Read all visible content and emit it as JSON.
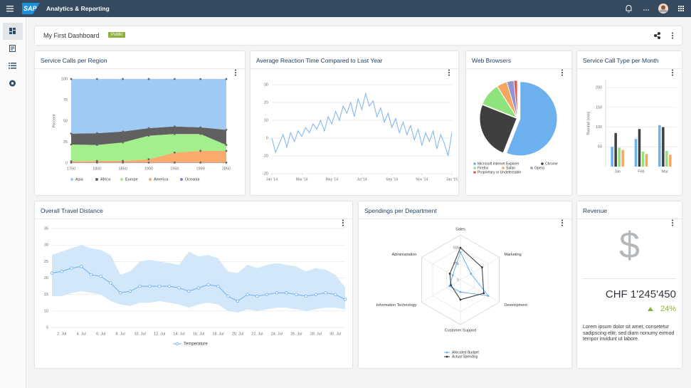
{
  "header": {
    "logo": "SAP",
    "app_title": "Analytics & Reporting"
  },
  "dashboard": {
    "title": "My First Dashboard",
    "badge": "Public"
  },
  "revenue": {
    "title": "Revenue",
    "icon": "$",
    "value": "CHF 1'245'450",
    "change": "24%",
    "text": "Lorem ipsum dolor sit amet, consetetur sadipscing elitr, sed diam nonumy eirmod tempor invidunt ut labore."
  },
  "chart_data": [
    {
      "type": "area",
      "stacked": true,
      "title": "Service Calls per Region",
      "y_label": "Percent",
      "categories": [
        "1750",
        "1800",
        "1850",
        "1900",
        "1950",
        "1999",
        "2050"
      ],
      "ylim": [
        0,
        100
      ],
      "yticks": [
        0,
        25,
        50,
        75,
        100
      ],
      "grid": true,
      "series": [
        {
          "name": "Asia",
          "color": "#9fcaf3",
          "values": [
            65,
            64.5,
            62.5,
            58.5,
            56.5,
            57.5,
            60.5
          ]
        },
        {
          "name": "Africa",
          "color": "#606060",
          "values": [
            13,
            14,
            13,
            9,
            9,
            8,
            18
          ]
        },
        {
          "name": "Europe",
          "color": "#a2ef8c",
          "values": [
            20,
            19,
            22,
            28,
            22,
            20,
            7
          ]
        },
        {
          "name": "America",
          "color": "#f8ab6d",
          "values": [
            1.5,
            2,
            2,
            4,
            12,
            14,
            14
          ]
        },
        {
          "name": "Oceania",
          "color": "#7d86d9",
          "values": [
            0.5,
            0.5,
            0.5,
            0.5,
            0.5,
            0.5,
            0.5
          ]
        }
      ]
    },
    {
      "type": "line",
      "title": "Average Reaction Time Compared to Last Year",
      "color": "#87b9ec",
      "x": [
        0,
        1,
        2,
        3,
        4,
        5,
        6,
        7,
        8,
        9,
        10,
        11,
        12,
        13,
        14,
        15,
        16,
        17,
        18,
        19,
        20,
        21,
        22,
        23,
        24,
        25,
        26,
        27,
        28,
        29,
        30,
        31,
        32,
        33,
        34,
        35,
        36,
        37,
        38,
        39,
        40,
        41,
        42,
        43,
        44,
        45,
        46,
        47,
        48
      ],
      "values": [
        0,
        -8,
        -3,
        2,
        -5,
        3,
        -2,
        4,
        1,
        6,
        3,
        8,
        5,
        10,
        4,
        12,
        8,
        15,
        10,
        18,
        14,
        20,
        12,
        22,
        16,
        25,
        18,
        21,
        12,
        17,
        9,
        14,
        6,
        11,
        3,
        9,
        2,
        7,
        -1,
        5,
        -4,
        3,
        -2,
        4,
        -6,
        2,
        -3,
        -10,
        3
      ],
      "xlim": [
        0,
        48
      ],
      "xticks": [
        {
          "value": 0,
          "label": "Jan '14"
        },
        {
          "value": 8,
          "label": "Mar '14"
        },
        {
          "value": 16,
          "label": "May '14"
        },
        {
          "value": 24,
          "label": "Jul '14"
        },
        {
          "value": 32,
          "label": "Sep '14"
        },
        {
          "value": 40,
          "label": "Nov '14"
        },
        {
          "value": 48,
          "label": "Jan '15"
        }
      ],
      "ylim": [
        -20,
        30
      ],
      "yticks": [
        -20,
        -10,
        0,
        10,
        20,
        30
      ],
      "grid": true
    },
    {
      "type": "pie",
      "title": "Web Browsers",
      "categories": [
        "Microsoft Internet Explorer",
        "Chrome",
        "Firefox",
        "Safari",
        "Opera",
        "Proprietary or Undetectable"
      ],
      "values": [
        56,
        25,
        10,
        4.5,
        3,
        1.5
      ],
      "colors": [
        "#6cb0ed",
        "#3f3f3f",
        "#8fe37c",
        "#f5a660",
        "#8f94d6",
        "#e8554f"
      ]
    },
    {
      "type": "bar",
      "title": "Service Call Type per Month",
      "y_label": "Rainfall (mm)",
      "categories": [
        "Jan",
        "Feb",
        "Mar"
      ],
      "ylim": [
        0,
        220
      ],
      "yticks": [
        50,
        100,
        150,
        200
      ],
      "grid": true,
      "series": [
        {
          "color": "#6cb0ed",
          "values": [
            50,
            70,
            105
          ]
        },
        {
          "color": "#3f3f3f",
          "values": [
            85,
            95,
            100
          ]
        },
        {
          "color": "#8fe37c",
          "values": [
            48,
            38,
            40
          ]
        },
        {
          "color": "#f5a660",
          "values": [
            42,
            32,
            30
          ]
        }
      ]
    },
    {
      "type": "line",
      "title": "Overall Travel Distance",
      "categories": [
        null,
        "2. Jul",
        null,
        "4. Jul",
        null,
        "6. Jul",
        null,
        "8. Jul",
        null,
        "10. Jul",
        null,
        "12. Jul",
        null,
        "14. Jul",
        null,
        "16. Jul",
        null,
        "18. Jul",
        null,
        "20. Jul",
        null,
        "22. Jul",
        null,
        "24. Jul",
        null,
        "26. Jul",
        null,
        "28. Jul",
        null,
        "30. Jul",
        null
      ],
      "ylim": [
        5,
        35
      ],
      "yticks": [
        5,
        10,
        15,
        20,
        25,
        30,
        35
      ],
      "grid": true,
      "series": [
        {
          "name": "Temperature",
          "color": "#6cb0ed",
          "band_color": "#d3e7fa",
          "values": [
            21.5,
            22,
            23,
            23.5,
            21,
            20.5,
            18.5,
            15.5,
            16,
            17.5,
            17.5,
            17.5,
            17.5,
            17,
            16,
            17,
            18,
            17.5,
            14.5,
            13,
            15,
            14.5,
            15,
            15.5,
            15.5,
            15,
            14.5,
            15,
            15.5,
            15,
            13.5
          ],
          "range_low": [
            14.5,
            14.5,
            15.5,
            16,
            15.5,
            15,
            13,
            12,
            11.5,
            12.5,
            12.5,
            13,
            12.5,
            12,
            11,
            12,
            12.5,
            12,
            10,
            9.5,
            10.5,
            10,
            10.5,
            11,
            11,
            10.5,
            10,
            10.5,
            11,
            11,
            10.5
          ],
          "range_high": [
            27,
            28,
            29,
            30,
            29,
            28.5,
            27,
            21,
            22,
            25,
            25.5,
            25,
            24.5,
            24,
            28,
            26.5,
            27,
            26,
            22,
            21.5,
            24,
            23,
            24,
            24.5,
            24,
            23.5,
            22,
            23,
            22.5,
            21,
            17
          ]
        }
      ]
    },
    {
      "type": "radar",
      "title": "Spendings per Department",
      "categories": [
        "Sales",
        "Marketing",
        "Development",
        "Customer Support",
        "Information Technology",
        "Administration"
      ],
      "rlim": [
        0,
        70000
      ],
      "rticks": [
        {
          "value": 0,
          "label": "0"
        },
        {
          "value": 25000,
          "label": "25k"
        },
        {
          "value": 50000,
          "label": "50k"
        }
      ],
      "series": [
        {
          "name": "Allocated Budget",
          "color": "#6cb0ed",
          "values": [
            43000,
            19000,
            50000,
            19000,
            20000,
            14000
          ]
        },
        {
          "name": "Actual Spending",
          "color": "#333333",
          "values": [
            50000,
            39000,
            42000,
            31000,
            17000,
            19000
          ]
        }
      ]
    }
  ]
}
